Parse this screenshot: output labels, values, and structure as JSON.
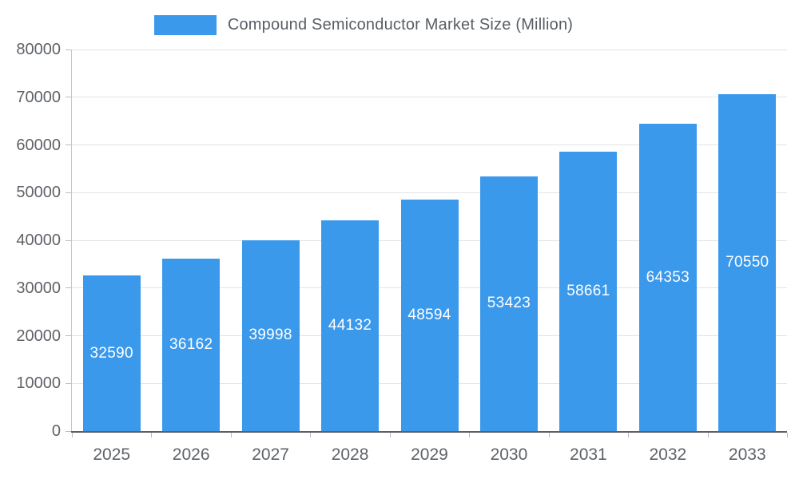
{
  "chart_data": {
    "type": "bar",
    "title": "Compound Semiconductor Market Size (Million)",
    "categories": [
      "2025",
      "2026",
      "2027",
      "2028",
      "2029",
      "2030",
      "2031",
      "2032",
      "2033"
    ],
    "values": [
      32590,
      36162,
      39998,
      44132,
      48594,
      53423,
      58661,
      64353,
      70550
    ],
    "xlabel": "",
    "ylabel": "",
    "ylim": [
      0,
      80000
    ],
    "ytick_step": 10000,
    "ytick_labels": [
      "0",
      "10000",
      "20000",
      "30000",
      "40000",
      "50000",
      "60000",
      "70000",
      "80000"
    ],
    "grid": true,
    "legend_position": "top",
    "bar_labels_inside": true
  },
  "colors": {
    "bar": "#3B99EC",
    "bar_label": "#FFFFFF",
    "grid": "#E1E4E7",
    "y_axis_line": "#C4C7CA",
    "x_axis_line": "#5C6166",
    "tick": "#B9BCC0",
    "axis_text": "#5F6368",
    "legend_text": "#585E64"
  }
}
